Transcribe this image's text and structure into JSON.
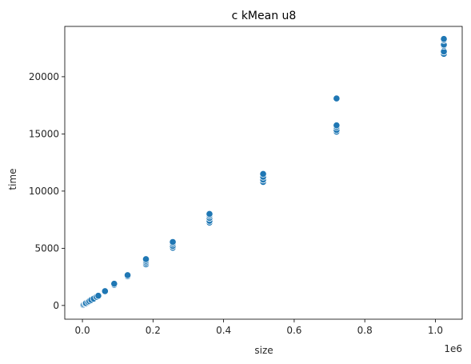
{
  "chart_data": {
    "type": "scatter",
    "title": "c kMean u8",
    "xlabel": "size",
    "ylabel": "time",
    "x_offset_label": "1e6",
    "x_scale": 1000000,
    "xlim": [
      -0.05,
      1.076
    ],
    "ylim": [
      -1200,
      24400
    ],
    "xticks": [
      0.0,
      0.2,
      0.4,
      0.6,
      0.8,
      1.0
    ],
    "xtick_labels": [
      "0.0",
      "0.2",
      "0.4",
      "0.6",
      "0.8",
      "1.0"
    ],
    "yticks": [
      0,
      5000,
      10000,
      15000,
      20000
    ],
    "ytick_labels": [
      "0",
      "5000",
      "10000",
      "15000",
      "20000"
    ],
    "grid": false,
    "legend": "none",
    "point_color": "#1f77b4",
    "series": [
      {
        "x": [
          1000,
          2000,
          4000,
          8000,
          10000,
          16000,
          20000,
          25000,
          32000,
          40000,
          45000,
          64000,
          64000,
          90000,
          90000,
          128000,
          128000,
          180000,
          180000,
          180000,
          180000,
          256000,
          256000,
          256000,
          256000,
          360000,
          360000,
          360000,
          360000,
          360000,
          512000,
          512000,
          512000,
          512000,
          720000,
          720000,
          720000,
          720000,
          720000,
          1024000,
          1024000,
          1024000,
          1024000,
          1024000,
          1024000
        ],
        "y": [
          20,
          40,
          80,
          150,
          200,
          300,
          380,
          480,
          600,
          750,
          850,
          1200,
          1250,
          1800,
          1900,
          2550,
          2650,
          3600,
          3750,
          3900,
          4050,
          5050,
          5200,
          5400,
          5550,
          7250,
          7400,
          7650,
          7850,
          8000,
          10800,
          11000,
          11250,
          11500,
          15200,
          15350,
          15600,
          15750,
          18100,
          22000,
          22200,
          22700,
          22800,
          23200,
          23300
        ]
      }
    ]
  }
}
